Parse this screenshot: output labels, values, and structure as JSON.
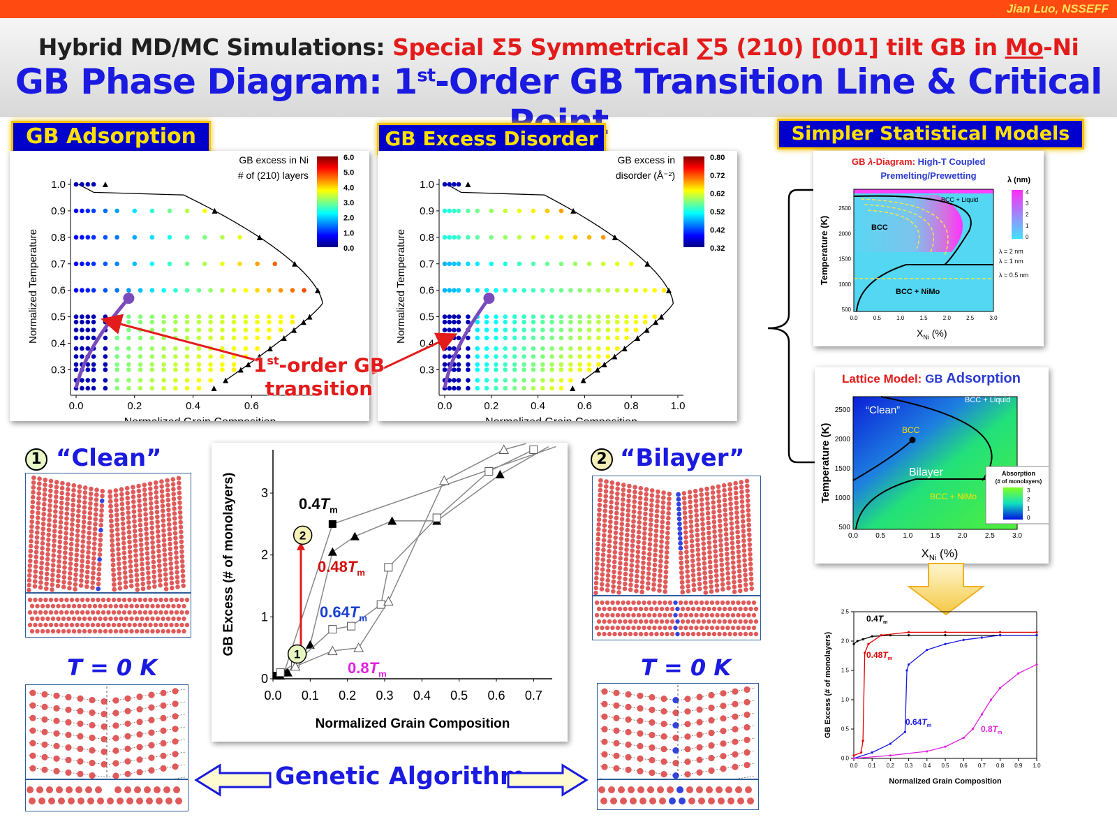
{
  "header": {
    "author": "Jian Luo, NSSEFF",
    "title_prefix": "Hybrid MD/MC Simulations: ",
    "title_red_a": "Special Σ5 Symmetrical ∑5 (210) [001] tilt GB in ",
    "title_mo": "Mo",
    "title_red_b": "-Ni",
    "subtitle_a": "GB Phase Diagram: 1",
    "subtitle_sup": "st",
    "subtitle_b": "-Order GB Transition Line & Critical Point"
  },
  "tags": {
    "adsorption": "GB Adsorption",
    "disorder": "GB Excess Disorder",
    "models": "Simpler Statistical Models"
  },
  "plot_common": {
    "xlabel": "Normalized Grain Composition",
    "ylabel": "Normalized Temperature"
  },
  "adsorption_plot": {
    "legend_line1": "GB excess in Ni",
    "legend_line2": "# of (210) layers",
    "ticks": [
      "6.0",
      "5.0",
      "4.0",
      "3.0",
      "2.0",
      "1.0",
      "0.0"
    ],
    "xticks": [
      "0.0",
      "0.2",
      "0.4",
      "0.6"
    ],
    "yticks": [
      "1.0",
      "0.9",
      "0.8",
      "0.7",
      "0.6",
      "0.5",
      "0.4",
      "0.3"
    ]
  },
  "disorder_plot": {
    "legend_line1": "GB excess in",
    "legend_line2": "disorder (Å⁻²)",
    "ticks": [
      "0.80",
      "0.72",
      "0.62",
      "0.52",
      "0.42",
      "0.32"
    ],
    "xticks": [
      "0.0",
      "0.2",
      "0.4",
      "0.6",
      "0.8",
      "1.0"
    ],
    "yticks": [
      "1.0",
      "0.9",
      "0.8",
      "0.7",
      "0.6",
      "0.5",
      "0.4",
      "0.3"
    ]
  },
  "transition_label": {
    "a": "1",
    "sup": "st",
    "b": "-order GB",
    "c": "transition"
  },
  "lambda_diagram": {
    "title_a": "GB ",
    "title_lambda": "λ",
    "title_b": "-Diagram: ",
    "title_c": "High-T Coupled",
    "title_d": "Premelting/Prewetting",
    "colorbar_title": "λ (nm)",
    "colorbar_ticks": [
      "4",
      "3",
      "2",
      "1",
      "0"
    ],
    "ylabel": "Temperature (K)",
    "xlabel": "X",
    "xlabel_sub": "Ni",
    "xlabel_unit": " (%)",
    "yticks": [
      "2500",
      "2000",
      "1500",
      "1000",
      "500"
    ],
    "xticks": [
      "0.0",
      "0.5",
      "1.0",
      "1.5",
      "2.0",
      "2.5",
      "3.0"
    ],
    "region_bcc": "BCC",
    "region_liquid": "BCC + Liquid",
    "region_nimo": "BCC + NiMo",
    "contour_2": "λ = 2 nm",
    "contour_1": "λ = 1 nm",
    "contour_05": "λ = 0.5 nm"
  },
  "lattice_model": {
    "title_a": "Lattice Model: ",
    "title_b": "GB ",
    "title_c": "Adsorption",
    "ylabel": "Temperature (K)",
    "xlabel": "X",
    "xlabel_sub": "Ni",
    "xlabel_unit": " (%)",
    "yticks": [
      "2500",
      "2000",
      "1500",
      "1000",
      "500"
    ],
    "xticks": [
      "0.0",
      "0.5",
      "1.0",
      "1.5",
      "2.0",
      "2.5",
      "3.0"
    ],
    "region_clean": "“Clean”",
    "region_bcc": "BCC",
    "region_liquid": "BCC + Liquid",
    "region_bilayer": "Bilayer",
    "region_nimo": "BCC + NiMo",
    "legend_title": "Absorption",
    "legend_sub": "(# of monolayers)",
    "legend_ticks": [
      "3",
      "2",
      "1",
      "0"
    ]
  },
  "structures": {
    "clean_num": "1",
    "clean_label": "“Clean”",
    "bilayer_num": "2",
    "bilayer_label": "“Bilayer”",
    "t0_left": "T = 0 K",
    "t0_right": "T = 0 K",
    "genetic": "Genetic Algorithm"
  },
  "colors": {
    "title_blue": "#1a1ae0",
    "accent_red": "#e31b1b",
    "tag_bg": "#0000cc",
    "tag_text": "#ffe000",
    "atom_red": "#e05a5a",
    "atom_blue": "#3344dd"
  },
  "chart_data": [
    {
      "type": "line",
      "xlabel": "Normalized Grain Composition",
      "ylabel": "GB Excess (# of monolayers)",
      "xlim": [
        0.0,
        0.75
      ],
      "ylim": [
        0,
        3.7
      ],
      "xticks": [
        "0.0",
        "0.1",
        "0.2",
        "0.3",
        "0.4",
        "0.5",
        "0.6",
        "0.7"
      ],
      "yticks": [
        "0",
        "1",
        "2",
        "3"
      ],
      "series": [
        {
          "name": "0.4Tm",
          "marker": "filled-square",
          "color": "#000000",
          "x": [
            0.01,
            0.03,
            0.16,
            0.76
          ],
          "y": [
            0.05,
            0.1,
            2.5,
            3.75
          ]
        },
        {
          "name": "0.48Tm",
          "marker": "filled-triangle",
          "color": "#000000",
          "x": [
            0.02,
            0.04,
            0.1,
            0.16,
            0.22,
            0.32,
            0.44,
            0.61,
            0.74
          ],
          "y": [
            0.05,
            0.1,
            0.55,
            2.05,
            2.3,
            2.55,
            2.55,
            3.3,
            3.75
          ]
        },
        {
          "name": "0.64Tm",
          "marker": "open-square",
          "color": "#000000",
          "x": [
            0.02,
            0.06,
            0.16,
            0.21,
            0.29,
            0.31,
            0.44,
            0.58,
            0.7
          ],
          "y": [
            0.1,
            0.25,
            0.8,
            0.85,
            1.2,
            1.8,
            2.6,
            3.35,
            3.7
          ]
        },
        {
          "name": "0.8Tm",
          "marker": "open-triangle",
          "color": "#000000",
          "x": [
            0.06,
            0.16,
            0.23,
            0.31,
            0.46,
            0.62,
            0.68
          ],
          "y": [
            0.2,
            0.45,
            0.5,
            1.25,
            3.2,
            3.7,
            3.8
          ]
        }
      ],
      "annotations": [
        {
          "text": "0.4Tm",
          "label_a": "0.4",
          "label_b": "T",
          "label_sub": "m",
          "color": "#000000"
        },
        {
          "text": "0.48Tm",
          "label_a": "0.48",
          "label_b": "T",
          "label_sub": "m",
          "color": "#d01010"
        },
        {
          "text": "0.64Tm",
          "label_a": "0.64",
          "label_b": "T",
          "label_sub": "m",
          "color": "#1a3fd0"
        },
        {
          "text": "0.8Tm",
          "label_a": "0.8",
          "label_b": "T",
          "label_sub": "m",
          "color": "#e020e0"
        },
        {
          "text": "1"
        },
        {
          "text": "2"
        }
      ]
    },
    {
      "type": "line",
      "xlabel": "Normalized Grain Composition",
      "ylabel": "GB Excess (# of monolayers)",
      "xlim": [
        0.0,
        1.0
      ],
      "ylim": [
        0.0,
        2.5
      ],
      "xticks": [
        "0.0",
        "0.1",
        "0.2",
        "0.3",
        "0.4",
        "0.5",
        "0.6",
        "0.7",
        "0.8",
        "0.9",
        "1.0"
      ],
      "yticks": [
        "2.5",
        "2.0",
        "1.5",
        "1.0",
        "0.5",
        "0.0"
      ],
      "series": [
        {
          "name": "0.4Tm",
          "color": "#000000",
          "x": [
            0.0,
            0.02,
            0.05,
            0.1,
            0.2,
            0.3,
            0.5,
            0.8,
            1.0
          ],
          "y": [
            1.95,
            2.0,
            2.03,
            2.08,
            2.1,
            2.1,
            2.1,
            2.1,
            2.1
          ]
        },
        {
          "name": "0.48Tm",
          "color": "#e00000",
          "x": [
            0.0,
            0.04,
            0.05,
            0.06,
            0.08,
            0.15,
            0.3,
            0.5,
            0.8,
            1.0
          ],
          "y": [
            0.05,
            0.1,
            0.3,
            1.8,
            1.95,
            2.1,
            2.15,
            2.15,
            2.15,
            2.15
          ]
        },
        {
          "name": "0.64Tm",
          "color": "#1a1ae0",
          "x": [
            0.0,
            0.1,
            0.2,
            0.28,
            0.29,
            0.3,
            0.4,
            0.5,
            0.6,
            0.7,
            0.8,
            1.0
          ],
          "y": [
            0.0,
            0.1,
            0.25,
            0.45,
            1.5,
            1.6,
            1.85,
            1.95,
            2.02,
            2.06,
            2.1,
            2.1
          ]
        },
        {
          "name": "0.8Tm",
          "color": "#e020e0",
          "x": [
            0.0,
            0.2,
            0.4,
            0.5,
            0.6,
            0.65,
            0.7,
            0.75,
            0.8,
            0.9,
            1.0
          ],
          "y": [
            0.0,
            0.05,
            0.12,
            0.2,
            0.35,
            0.5,
            0.75,
            1.0,
            1.2,
            1.45,
            1.6
          ]
        }
      ],
      "annotations": [
        {
          "text": "0.4Tm",
          "label_a": "0.4",
          "label_b": "T",
          "label_sub": "m",
          "color": "#000000"
        },
        {
          "text": "0.48Tm",
          "label_a": "0.48",
          "label_b": "T",
          "label_sub": "m",
          "color": "#e00000"
        },
        {
          "text": "0.64Tm",
          "label_a": "0.64",
          "label_b": "T",
          "label_sub": "m",
          "color": "#1a1ae0"
        },
        {
          "text": "0.8Tm",
          "label_a": "0.8",
          "label_b": "T",
          "label_sub": "m",
          "color": "#e020e0"
        }
      ]
    }
  ]
}
